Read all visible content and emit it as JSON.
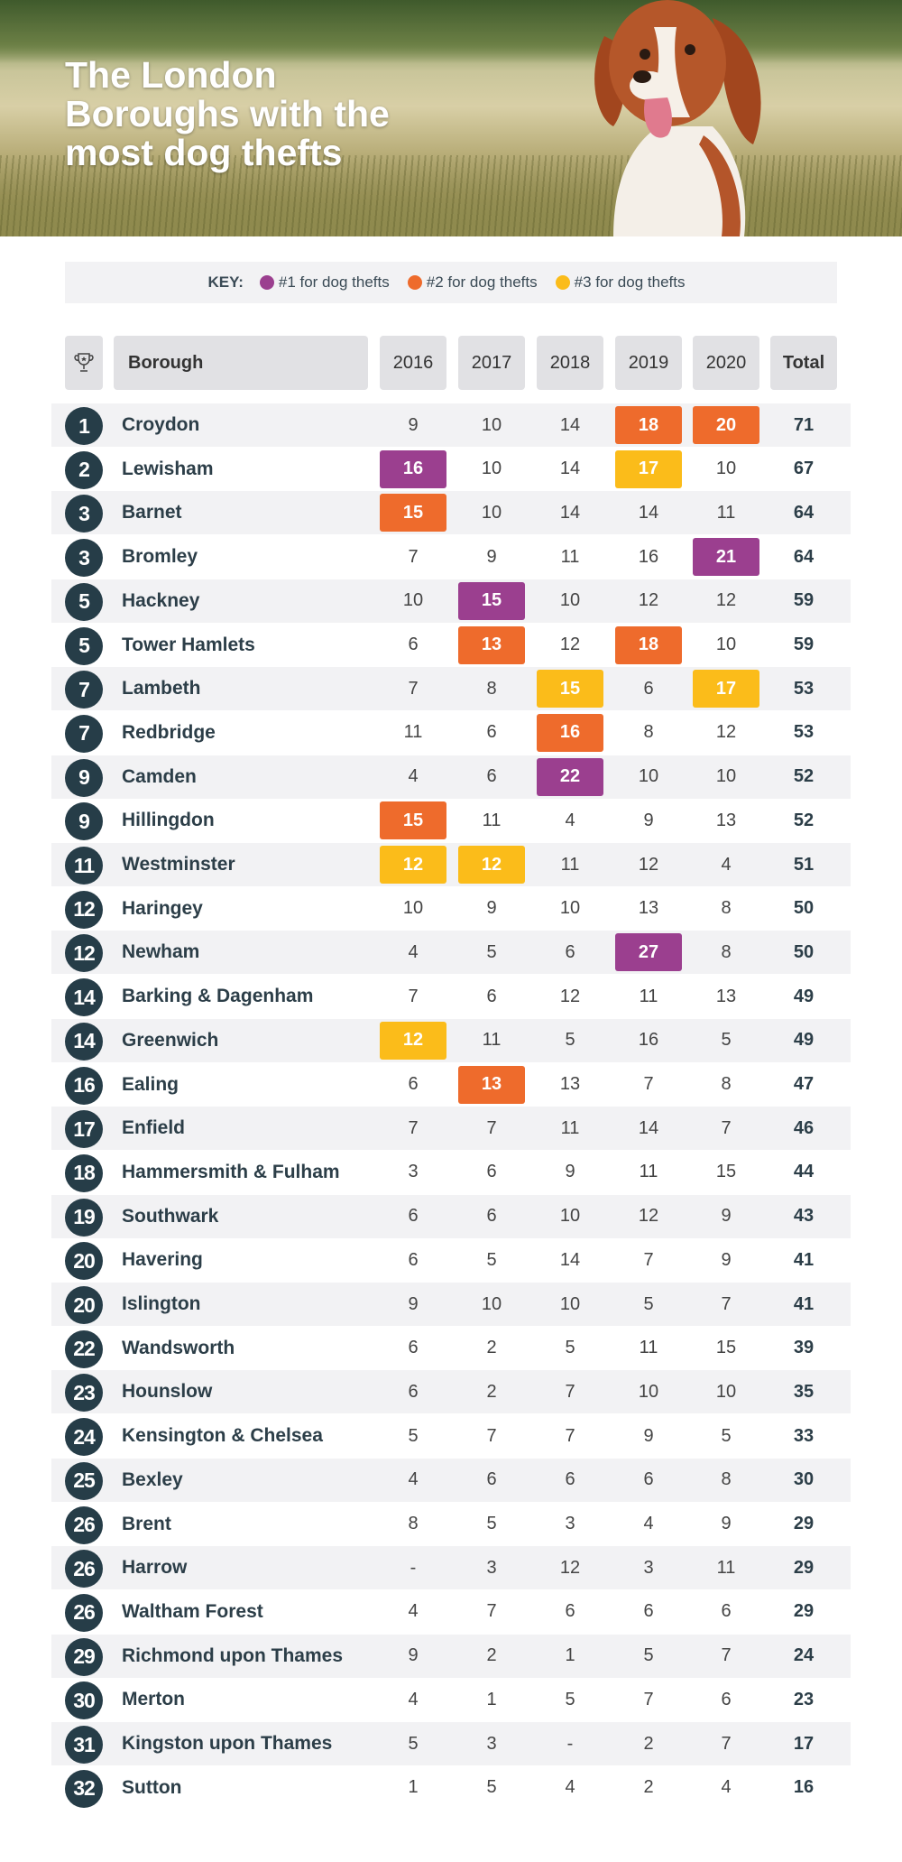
{
  "title": "The London Boroughs with the most dog thefts",
  "key": {
    "label": "KEY:",
    "items": [
      {
        "label": "#1 for dog thefts",
        "color": "#9b3f8f"
      },
      {
        "label": "#2 for dog thefts",
        "color": "#ee6b2c"
      },
      {
        "label": "#3 for dog thefts",
        "color": "#fbbc1a"
      }
    ]
  },
  "header": {
    "rank_icon": "trophy-icon",
    "borough": "Borough",
    "years": [
      "2016",
      "2017",
      "2018",
      "2019",
      "2020"
    ],
    "total": "Total"
  },
  "rows": [
    {
      "rank": "1",
      "borough": "Croydon",
      "values": [
        "9",
        "10",
        "14",
        "18",
        "20"
      ],
      "highlights": [
        0,
        0,
        0,
        2,
        2
      ],
      "total": "71"
    },
    {
      "rank": "2",
      "borough": "Lewisham",
      "values": [
        "16",
        "10",
        "14",
        "17",
        "10"
      ],
      "highlights": [
        1,
        0,
        0,
        3,
        0
      ],
      "total": "67"
    },
    {
      "rank": "3",
      "borough": "Barnet",
      "values": [
        "15",
        "10",
        "14",
        "14",
        "11"
      ],
      "highlights": [
        2,
        0,
        0,
        0,
        0
      ],
      "total": "64"
    },
    {
      "rank": "3",
      "borough": "Bromley",
      "values": [
        "7",
        "9",
        "11",
        "16",
        "21"
      ],
      "highlights": [
        0,
        0,
        0,
        0,
        1
      ],
      "total": "64"
    },
    {
      "rank": "5",
      "borough": "Hackney",
      "values": [
        "10",
        "15",
        "10",
        "12",
        "12"
      ],
      "highlights": [
        0,
        1,
        0,
        0,
        0
      ],
      "total": "59"
    },
    {
      "rank": "5",
      "borough": "Tower Hamlets",
      "values": [
        "6",
        "13",
        "12",
        "18",
        "10"
      ],
      "highlights": [
        0,
        2,
        0,
        2,
        0
      ],
      "total": "59"
    },
    {
      "rank": "7",
      "borough": "Lambeth",
      "values": [
        "7",
        "8",
        "15",
        "6",
        "17"
      ],
      "highlights": [
        0,
        0,
        3,
        0,
        3
      ],
      "total": "53"
    },
    {
      "rank": "7",
      "borough": "Redbridge",
      "values": [
        "11",
        "6",
        "16",
        "8",
        "12"
      ],
      "highlights": [
        0,
        0,
        2,
        0,
        0
      ],
      "total": "53"
    },
    {
      "rank": "9",
      "borough": "Camden",
      "values": [
        "4",
        "6",
        "22",
        "10",
        "10"
      ],
      "highlights": [
        0,
        0,
        1,
        0,
        0
      ],
      "total": "52"
    },
    {
      "rank": "9",
      "borough": "Hillingdon",
      "values": [
        "15",
        "11",
        "4",
        "9",
        "13"
      ],
      "highlights": [
        2,
        0,
        0,
        0,
        0
      ],
      "total": "52"
    },
    {
      "rank": "11",
      "borough": "Westminster",
      "values": [
        "12",
        "12",
        "11",
        "12",
        "4"
      ],
      "highlights": [
        3,
        3,
        0,
        0,
        0
      ],
      "total": "51"
    },
    {
      "rank": "12",
      "borough": "Haringey",
      "values": [
        "10",
        "9",
        "10",
        "13",
        "8"
      ],
      "highlights": [
        0,
        0,
        0,
        0,
        0
      ],
      "total": "50"
    },
    {
      "rank": "12",
      "borough": "Newham",
      "values": [
        "4",
        "5",
        "6",
        "27",
        "8"
      ],
      "highlights": [
        0,
        0,
        0,
        1,
        0
      ],
      "total": "50"
    },
    {
      "rank": "14",
      "borough": "Barking & Dagenham",
      "values": [
        "7",
        "6",
        "12",
        "11",
        "13"
      ],
      "highlights": [
        0,
        0,
        0,
        0,
        0
      ],
      "total": "49"
    },
    {
      "rank": "14",
      "borough": "Greenwich",
      "values": [
        "12",
        "11",
        "5",
        "16",
        "5"
      ],
      "highlights": [
        3,
        0,
        0,
        0,
        0
      ],
      "total": "49"
    },
    {
      "rank": "16",
      "borough": "Ealing",
      "values": [
        "6",
        "13",
        "13",
        "7",
        "8"
      ],
      "highlights": [
        0,
        2,
        0,
        0,
        0
      ],
      "total": "47"
    },
    {
      "rank": "17",
      "borough": "Enfield",
      "values": [
        "7",
        "7",
        "11",
        "14",
        "7"
      ],
      "highlights": [
        0,
        0,
        0,
        0,
        0
      ],
      "total": "46"
    },
    {
      "rank": "18",
      "borough": "Hammersmith & Fulham",
      "values": [
        "3",
        "6",
        "9",
        "11",
        "15"
      ],
      "highlights": [
        0,
        0,
        0,
        0,
        0
      ],
      "total": "44"
    },
    {
      "rank": "19",
      "borough": "Southwark",
      "values": [
        "6",
        "6",
        "10",
        "12",
        "9"
      ],
      "highlights": [
        0,
        0,
        0,
        0,
        0
      ],
      "total": "43"
    },
    {
      "rank": "20",
      "borough": "Havering",
      "values": [
        "6",
        "5",
        "14",
        "7",
        "9"
      ],
      "highlights": [
        0,
        0,
        0,
        0,
        0
      ],
      "total": "41"
    },
    {
      "rank": "20",
      "borough": "Islington",
      "values": [
        "9",
        "10",
        "10",
        "5",
        "7"
      ],
      "highlights": [
        0,
        0,
        0,
        0,
        0
      ],
      "total": "41"
    },
    {
      "rank": "22",
      "borough": "Wandsworth",
      "values": [
        "6",
        "2",
        "5",
        "11",
        "15"
      ],
      "highlights": [
        0,
        0,
        0,
        0,
        0
      ],
      "total": "39"
    },
    {
      "rank": "23",
      "borough": "Hounslow",
      "values": [
        "6",
        "2",
        "7",
        "10",
        "10"
      ],
      "highlights": [
        0,
        0,
        0,
        0,
        0
      ],
      "total": "35"
    },
    {
      "rank": "24",
      "borough": "Kensington & Chelsea",
      "values": [
        "5",
        "7",
        "7",
        "9",
        "5"
      ],
      "highlights": [
        0,
        0,
        0,
        0,
        0
      ],
      "total": "33"
    },
    {
      "rank": "25",
      "borough": "Bexley",
      "values": [
        "4",
        "6",
        "6",
        "6",
        "8"
      ],
      "highlights": [
        0,
        0,
        0,
        0,
        0
      ],
      "total": "30"
    },
    {
      "rank": "26",
      "borough": "Brent",
      "values": [
        "8",
        "5",
        "3",
        "4",
        "9"
      ],
      "highlights": [
        0,
        0,
        0,
        0,
        0
      ],
      "total": "29"
    },
    {
      "rank": "26",
      "borough": "Harrow",
      "values": [
        "-",
        "3",
        "12",
        "3",
        "11"
      ],
      "highlights": [
        0,
        0,
        0,
        0,
        0
      ],
      "total": "29"
    },
    {
      "rank": "26",
      "borough": "Waltham Forest",
      "values": [
        "4",
        "7",
        "6",
        "6",
        "6"
      ],
      "highlights": [
        0,
        0,
        0,
        0,
        0
      ],
      "total": "29"
    },
    {
      "rank": "29",
      "borough": "Richmond upon Thames",
      "values": [
        "9",
        "2",
        "1",
        "5",
        "7"
      ],
      "highlights": [
        0,
        0,
        0,
        0,
        0
      ],
      "total": "24"
    },
    {
      "rank": "30",
      "borough": "Merton",
      "values": [
        "4",
        "1",
        "5",
        "7",
        "6"
      ],
      "highlights": [
        0,
        0,
        0,
        0,
        0
      ],
      "total": "23"
    },
    {
      "rank": "31",
      "borough": "Kingston upon Thames",
      "values": [
        "5",
        "3",
        "-",
        "2",
        "7"
      ],
      "highlights": [
        0,
        0,
        0,
        0,
        0
      ],
      "total": "17"
    },
    {
      "rank": "32",
      "borough": "Sutton",
      "values": [
        "1",
        "5",
        "4",
        "2",
        "4"
      ],
      "highlights": [
        0,
        0,
        0,
        0,
        0
      ],
      "total": "16"
    }
  ]
}
